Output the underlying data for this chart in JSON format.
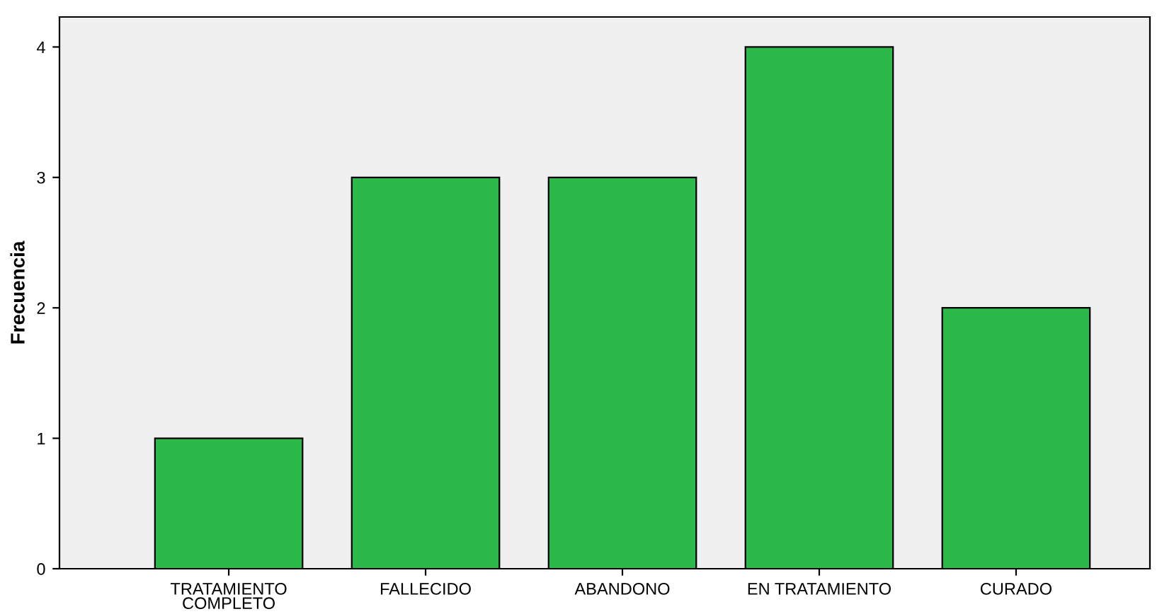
{
  "chart_data": {
    "type": "bar",
    "ylabel": "Frecuencia",
    "categories": [
      "TRATAMIENTO\nCOMPLETO",
      "FALLECIDO",
      "ABANDONO",
      "EN TRATAMIENTO",
      "CURADO"
    ],
    "values": [
      1,
      3,
      3,
      4,
      2
    ],
    "color": "#2db84a",
    "ylim": [
      0,
      4.23
    ],
    "yticks": [
      0,
      1,
      2,
      3,
      4
    ],
    "grid": false
  }
}
